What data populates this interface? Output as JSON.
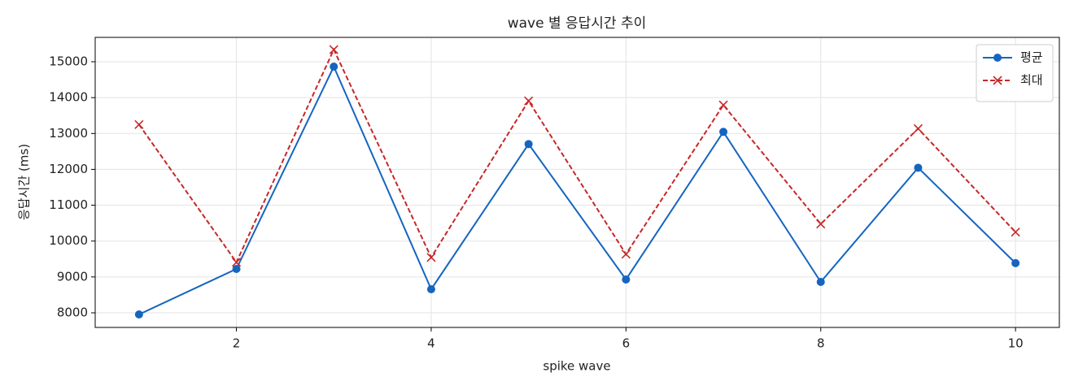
{
  "chart_data": {
    "type": "line",
    "title": "wave 별 응답시간 추이",
    "xlabel": "spike wave",
    "ylabel": "응답시간 (ms)",
    "x": [
      1,
      2,
      3,
      4,
      5,
      6,
      7,
      8,
      9,
      10
    ],
    "series": [
      {
        "name": "평균",
        "color": "#1565c0",
        "linestyle": "solid",
        "marker": "o",
        "values": [
          7955,
          9223,
          14864,
          8657,
          12705,
          8929,
          13045,
          8861,
          12045,
          9385
        ]
      },
      {
        "name": "최대",
        "color": "#c62828",
        "linestyle": "dashed",
        "marker": "x",
        "values": [
          13249,
          9408,
          15340,
          9544,
          13909,
          9634,
          13794,
          10476,
          13136,
          10250
        ]
      }
    ],
    "xlim": [
      0.55,
      10.45
    ],
    "ylim": [
      7592,
      15680
    ],
    "xticks": [
      2,
      4,
      6,
      8,
      10
    ],
    "yticks": [
      8000,
      9000,
      10000,
      11000,
      12000,
      13000,
      14000,
      15000
    ],
    "grid": true,
    "legend": "upper right"
  }
}
